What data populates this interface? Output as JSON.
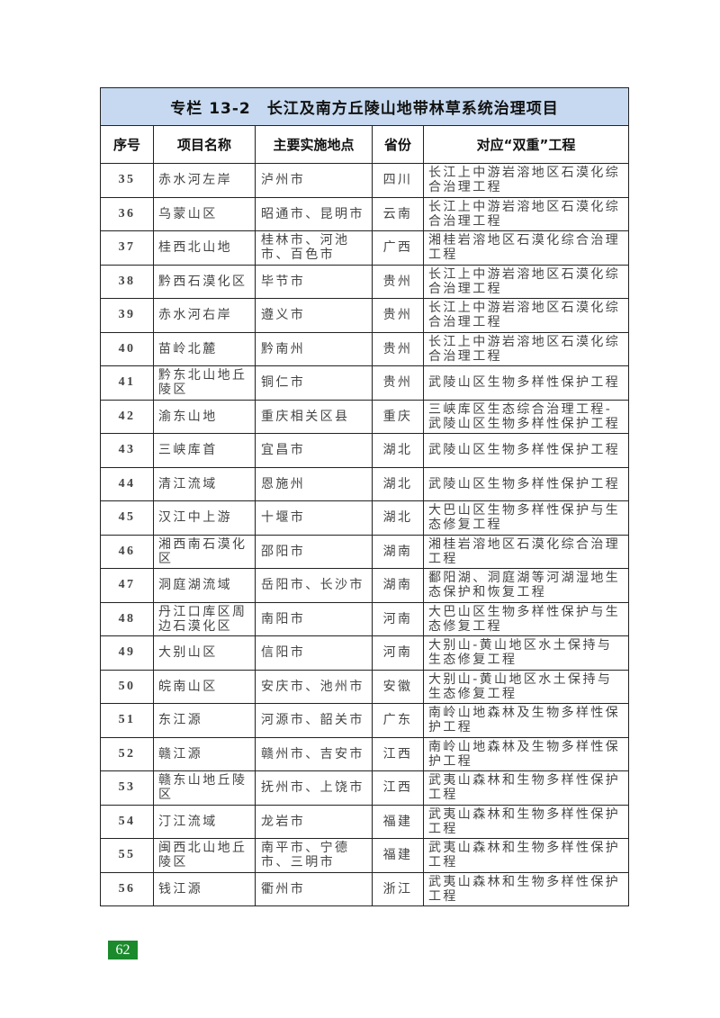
{
  "table": {
    "title": "专栏 13-2　长江及南方丘陵山地带林草系统治理项目",
    "headers": [
      "序号",
      "项目名称",
      "主要实施地点",
      "省份",
      "对应“双重”工程"
    ],
    "rows": [
      [
        "35",
        "赤水河左岸",
        "泸州市",
        "四川",
        "长江上中游岩溶地区石漠化综合治理工程"
      ],
      [
        "36",
        "乌蒙山区",
        "昭通市、昆明市",
        "云南",
        "长江上中游岩溶地区石漠化综合治理工程"
      ],
      [
        "37",
        "桂西北山地",
        "桂林市、河池市、百色市",
        "广西",
        "湘桂岩溶地区石漠化综合治理工程"
      ],
      [
        "38",
        "黔西石漠化区",
        "毕节市",
        "贵州",
        "长江上中游岩溶地区石漠化综合治理工程"
      ],
      [
        "39",
        "赤水河右岸",
        "遵义市",
        "贵州",
        "长江上中游岩溶地区石漠化综合治理工程"
      ],
      [
        "40",
        "苗岭北麓",
        "黔南州",
        "贵州",
        "长江上中游岩溶地区石漠化综合治理工程"
      ],
      [
        "41",
        "黔东北山地丘陵区",
        "铜仁市",
        "贵州",
        "武陵山区生物多样性保护工程"
      ],
      [
        "42",
        "渝东山地",
        "重庆相关区县",
        "重庆",
        "三峡库区生态综合治理工程-武陵山区生物多样性保护工程"
      ],
      [
        "43",
        "三峡库首",
        "宜昌市",
        "湖北",
        "武陵山区生物多样性保护工程"
      ],
      [
        "44",
        "清江流域",
        "恩施州",
        "湖北",
        "武陵山区生物多样性保护工程"
      ],
      [
        "45",
        "汉江中上游",
        "十堰市",
        "湖北",
        "大巴山区生物多样性保护与生态修复工程"
      ],
      [
        "46",
        "湘西南石漠化区",
        "邵阳市",
        "湖南",
        "湘桂岩溶地区石漠化综合治理工程"
      ],
      [
        "47",
        "洞庭湖流域",
        "岳阳市、长沙市",
        "湖南",
        "鄱阳湖、洞庭湖等河湖湿地生态保护和恢复工程"
      ],
      [
        "48",
        "丹江口库区周边石漠化区",
        "南阳市",
        "河南",
        "大巴山区生物多样性保护与生态修复工程"
      ],
      [
        "49",
        "大别山区",
        "信阳市",
        "河南",
        "大别山-黄山地区水土保持与生态修复工程"
      ],
      [
        "50",
        "皖南山区",
        "安庆市、池州市",
        "安徽",
        "大别山-黄山地区水土保持与生态修复工程"
      ],
      [
        "51",
        "东江源",
        "河源市、韶关市",
        "广东",
        "南岭山地森林及生物多样性保护工程"
      ],
      [
        "52",
        "赣江源",
        "赣州市、吉安市",
        "江西",
        "南岭山地森林及生物多样性保护工程"
      ],
      [
        "53",
        "赣东山地丘陵区",
        "抚州市、上饶市",
        "江西",
        "武夷山森林和生物多样性保护工程"
      ],
      [
        "54",
        "汀江流域",
        "龙岩市",
        "福建",
        "武夷山森林和生物多样性保护工程"
      ],
      [
        "55",
        "闽西北山地丘陵区",
        "南平市、宁德市、三明市",
        "福建",
        "武夷山森林和生物多样性保护工程"
      ],
      [
        "56",
        "钱江源",
        "衢州市",
        "浙江",
        "武夷山森林和生物多样性保护工程"
      ]
    ]
  },
  "page_number": "62",
  "colors": {
    "title_bg": "#c6d9f0",
    "page_badge": "#1b8a2c"
  }
}
